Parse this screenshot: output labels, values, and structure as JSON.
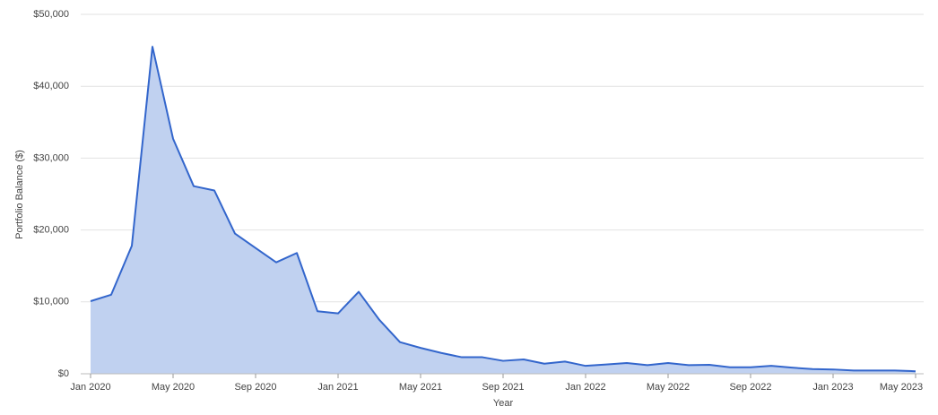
{
  "chart_data": {
    "type": "area",
    "x_label": "Year",
    "y_label": "Portfolio Balance ($)",
    "categories": [
      "Jan 2020",
      null,
      null,
      null,
      "May 2020",
      null,
      null,
      null,
      "Sep 2020",
      null,
      null,
      null,
      "Jan 2021",
      null,
      null,
      null,
      "May 2021",
      null,
      null,
      null,
      "Sep 2021",
      null,
      null,
      null,
      "Jan 2022",
      null,
      null,
      null,
      "May 2022",
      null,
      null,
      null,
      "Sep 2022",
      null,
      null,
      null,
      "Jan 2023",
      null,
      null,
      null,
      "May 2023"
    ],
    "values": [
      10100,
      11000,
      17800,
      45500,
      32700,
      26100,
      25500,
      19500,
      17500,
      15500,
      16800,
      8700,
      8400,
      11400,
      7500,
      4400,
      3600,
      2900,
      2300,
      2300,
      1800,
      2000,
      1400,
      1700,
      1100,
      1300,
      1500,
      1200,
      1500,
      1200,
      1250,
      900,
      900,
      1100,
      850,
      650,
      600,
      450,
      450,
      450,
      350
    ],
    "color": "#3366cc",
    "fill": "#c0d1f0",
    "ylim": [
      0,
      50000
    ],
    "yticks": [
      {
        "value": 0,
        "label": "$0"
      },
      {
        "value": 10000,
        "label": "$10,000"
      },
      {
        "value": 20000,
        "label": "$20,000"
      },
      {
        "value": 30000,
        "label": "$30,000"
      },
      {
        "value": 40000,
        "label": "$40,000"
      },
      {
        "value": 50000,
        "label": "$50,000"
      }
    ],
    "grid": true
  }
}
